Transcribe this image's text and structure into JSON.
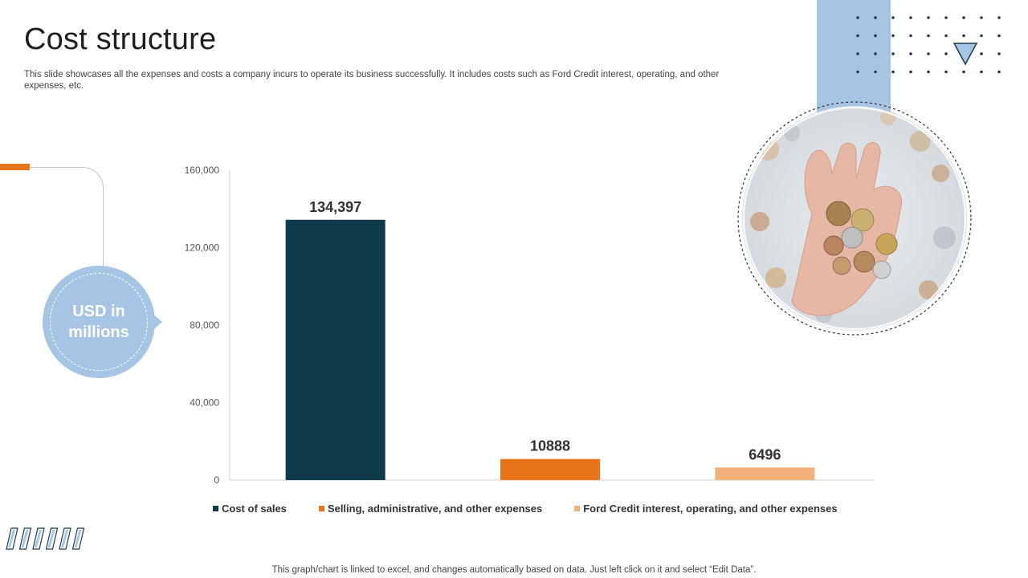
{
  "slide": {
    "title": "Cost structure",
    "subtitle": "This slide showcases all the expenses and costs a company incurs to operate its business successfully. It includes costs such as Ford Credit interest, operating, and other expenses, etc.",
    "unit_label": "USD in millions",
    "footer": "This graph/chart is linked to excel,  and changes automatically based on data. Just left click on it and select “Edit Data”.",
    "photo_icon": "hand-holding-coins-photo",
    "decor_icon": "triangle-down-icon",
    "colors": {
      "accent_blue": "#a6c4e4",
      "accent_orange": "#e8751a",
      "dark_teal": "#0f3a4a"
    }
  },
  "chart_data": {
    "type": "bar",
    "categories": [
      "Cost of sales",
      "Selling, administrative, and other expenses",
      "Ford Credit interest, operating, and other expenses"
    ],
    "values": [
      134397,
      10888,
      6496
    ],
    "data_labels": [
      "134,397",
      "10888",
      "6496"
    ],
    "colors": [
      "#0f3a4a",
      "#e8751a",
      "#f2b07a"
    ],
    "yticks": [
      "0",
      "40,000",
      "80,000",
      "120,000",
      "160,000"
    ],
    "ylim": [
      0,
      160000
    ],
    "grid": false,
    "legend_position": "bottom",
    "xlabel": "",
    "ylabel": ""
  }
}
